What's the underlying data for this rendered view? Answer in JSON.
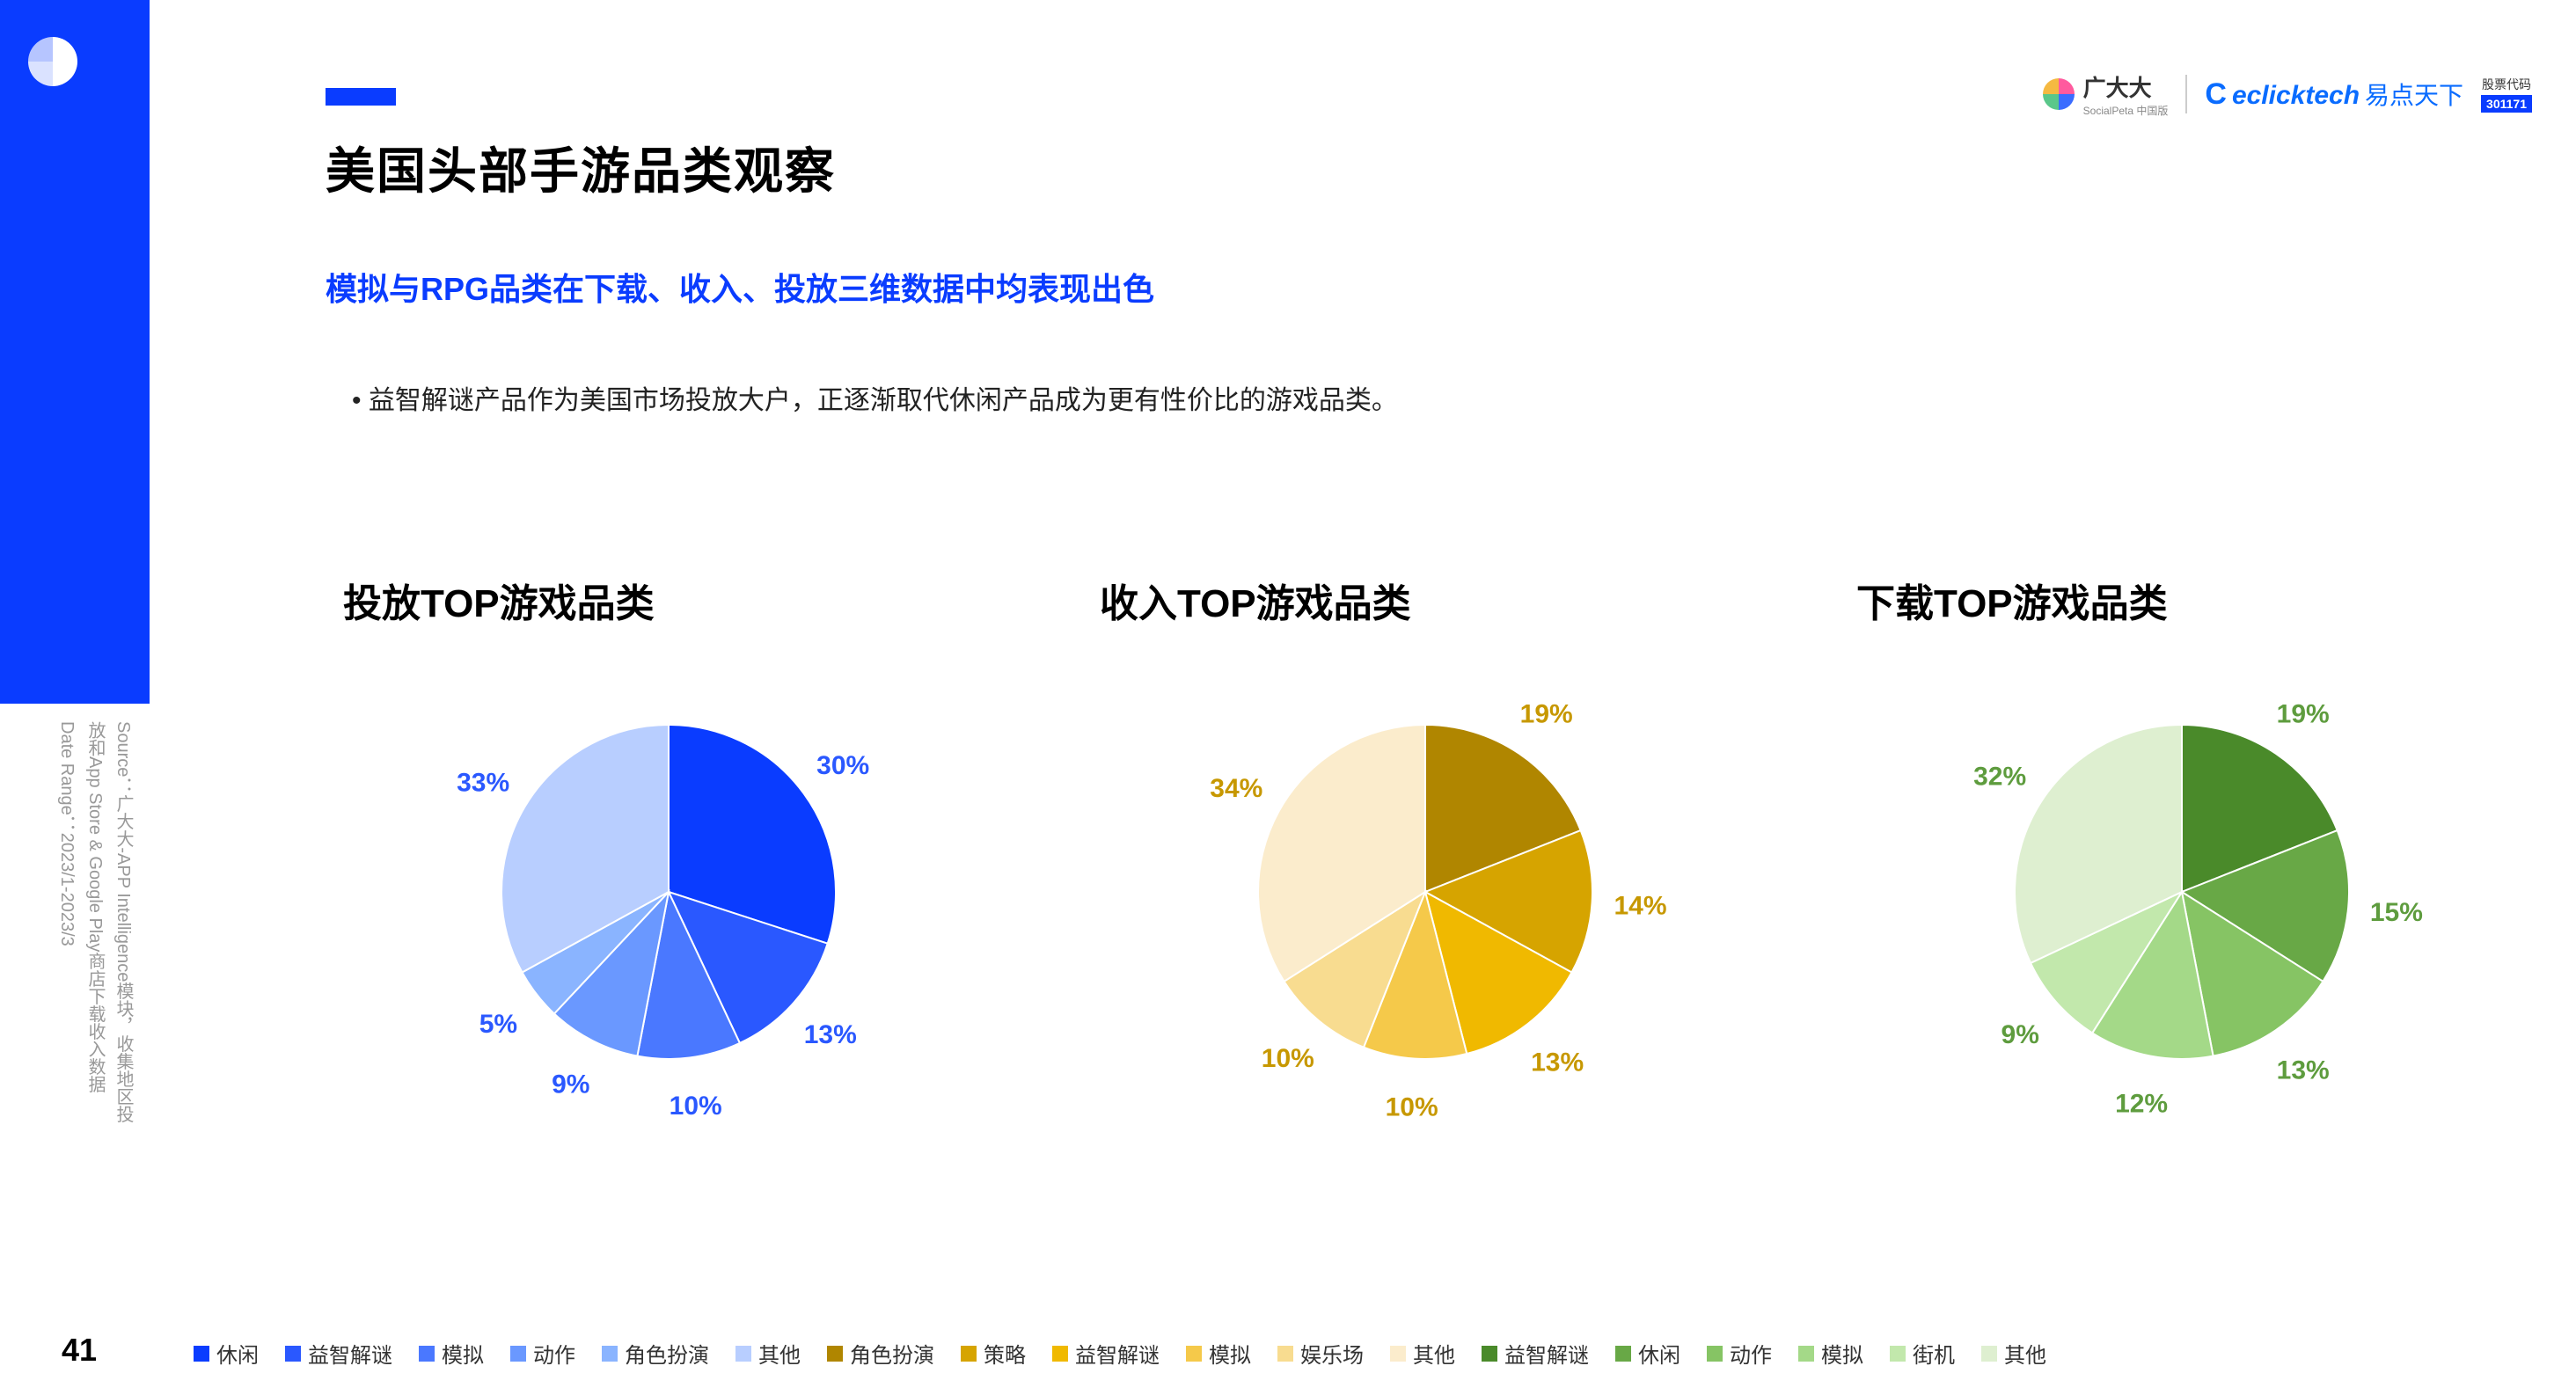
{
  "page_number": "41",
  "title": "美国头部手游品类观察",
  "subtitle": "模拟与RPG品类在下载、收入、投放三维数据中均表现出色",
  "bullet": "益智解谜产品作为美国市场投放大户，正逐渐取代休闲产品成为更有性价比的游戏品类。",
  "source_line1": "Source：广大大-APP Intelligence模块，收集地区投",
  "source_line2": "放和App Store & Google Play商店下载收入数据",
  "source_line3": "Date Range：2023/1-2023/3",
  "brand_gdd": "广大大",
  "brand_gdd_sub": "SocialPeta 中国版",
  "brand_eclick": "eclicktech",
  "brand_eclick_cn": "易点天下",
  "stock_label": "股票代码",
  "stock_code": "301171",
  "charts": [
    {
      "title": "投放TOP游戏品类",
      "colors": [
        "#0a3cff",
        "#2a58ff",
        "#4a78ff",
        "#6a98ff",
        "#8ab4ff",
        "#b8ceff"
      ],
      "labels": [
        "休闲",
        "益智解谜",
        "模拟",
        "动作",
        "角色扮演",
        "其他"
      ],
      "values": [
        30,
        13,
        10,
        9,
        5,
        33
      ],
      "label_color": "#2a58ff"
    },
    {
      "title": "收入TOP游戏品类",
      "colors": [
        "#b08600",
        "#d6a400",
        "#f0b900",
        "#f5c94a",
        "#f8dc90",
        "#fbeccc"
      ],
      "labels": [
        "角色扮演",
        "策略",
        "益智解谜",
        "模拟",
        "娱乐场",
        "其他"
      ],
      "values": [
        19,
        14,
        13,
        10,
        10,
        34
      ],
      "label_color": "#c79800"
    },
    {
      "title": "下载TOP游戏品类",
      "colors": [
        "#4a8a2a",
        "#68a846",
        "#86c464",
        "#a4d988",
        "#c2e8ac",
        "#deefd0"
      ],
      "labels": [
        "益智解谜",
        "休闲",
        "动作",
        "模拟",
        "街机",
        "其他"
      ],
      "values": [
        19,
        15,
        13,
        12,
        9,
        32
      ],
      "label_color": "#5e9c3e"
    }
  ]
}
